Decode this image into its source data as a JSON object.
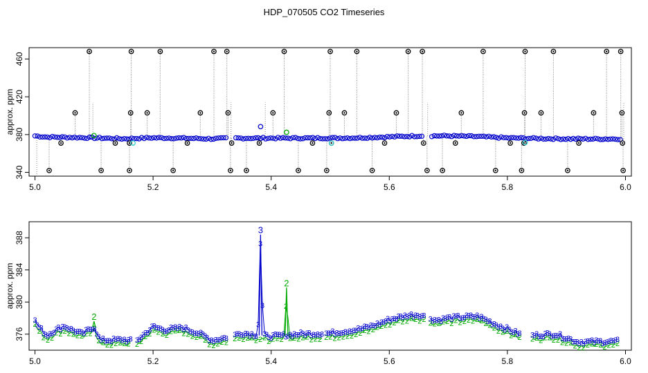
{
  "figure": {
    "title": "HDP_070505  CO2 Timeseries"
  },
  "chart_data": [
    {
      "type": "scatter",
      "ylabel": "approx. ppm",
      "xlim": [
        4.99,
        6.01
      ],
      "ylim": [
        336,
        472
      ],
      "x_ticks": [
        "5.0",
        "5.2",
        "5.4",
        "5.6",
        "5.8",
        "6.0"
      ],
      "y_ticks": [
        "340",
        "380",
        "420",
        "460"
      ],
      "grid": false,
      "colors": {
        "baseline": "#0000cc",
        "outlier": "#000000",
        "alt": "#00aa00",
        "cyan": "#33cccc",
        "drop": "#888888"
      },
      "baseline_anchors": [
        [
          5.0,
          378.6
        ],
        [
          5.02,
          377.4
        ],
        [
          5.05,
          377.2
        ],
        [
          5.1,
          376.5
        ],
        [
          5.15,
          375.6
        ],
        [
          5.2,
          376.6
        ],
        [
          5.25,
          376.2
        ],
        [
          5.3,
          375.5
        ],
        [
          5.33,
          376.2
        ],
        [
          5.4,
          376.2
        ],
        [
          5.5,
          376.3
        ],
        [
          5.55,
          376.6
        ],
        [
          5.6,
          377.6
        ],
        [
          5.65,
          378.6
        ],
        [
          5.7,
          378.6
        ],
        [
          5.75,
          377.9
        ],
        [
          5.8,
          376.5
        ],
        [
          5.85,
          375.9
        ],
        [
          5.9,
          375.5
        ],
        [
          5.95,
          375.4
        ],
        [
          5.99,
          375.4
        ]
      ],
      "baseline_gaps": [
        [
          5.327,
          5.336
        ],
        [
          5.659,
          5.668
        ]
      ],
      "outliers_high": [
        5.092,
        5.163,
        5.212,
        5.303,
        5.325,
        5.422,
        5.5,
        5.545,
        5.632,
        5.656,
        5.759,
        5.83,
        5.878,
        5.968,
        5.992
      ],
      "outliers_mid": [
        5.068,
        5.162,
        5.19,
        5.28,
        5.327,
        5.403,
        5.498,
        5.524,
        5.612,
        5.722,
        5.829,
        5.857,
        5.946,
        5.994
      ],
      "outliers_low": [
        5.024,
        5.112,
        5.16,
        5.234,
        5.331,
        5.358,
        5.446,
        5.494,
        5.571,
        5.664,
        5.69,
        5.78,
        5.824,
        5.902,
        5.996
      ],
      "outliers_base": [
        5.044,
        5.136,
        5.16,
        5.258,
        5.333,
        5.38,
        5.47,
        5.502,
        5.592,
        5.658,
        5.712,
        5.805,
        5.828,
        5.921,
        5.995
      ],
      "special_points": [
        {
          "x": 5.382,
          "y": 388.4,
          "color": "#0000cc"
        },
        {
          "x": 5.426,
          "y": 382.4,
          "color": "#00aa00"
        },
        {
          "x": 5.1,
          "y": 379.0,
          "color": "#00aa00"
        },
        {
          "x": 5.166,
          "y": 371.0,
          "color": "#33cccc"
        },
        {
          "x": 5.502,
          "y": 371.0,
          "color": "#33cccc"
        },
        {
          "x": 5.83,
          "y": 371.5,
          "color": "#33cccc"
        }
      ]
    },
    {
      "type": "line",
      "ylabel": "approx. ppm",
      "xlim": [
        4.99,
        6.01
      ],
      "ylim": [
        374.0,
        390.0
      ],
      "x_ticks": [
        "5.0",
        "5.2",
        "5.4",
        "5.6",
        "5.8",
        "6.0"
      ],
      "y_ticks": [
        "376",
        "380",
        "384",
        "388"
      ],
      "grid": false,
      "series": [
        {
          "marker": "3",
          "color": "#0000cc"
        },
        {
          "marker": "2",
          "color": "#00aa00"
        }
      ],
      "anchors": [
        [
          5.0,
          377.6
        ],
        [
          5.005,
          377.0
        ],
        [
          5.02,
          375.8
        ],
        [
          5.03,
          376.3
        ],
        [
          5.05,
          377.0
        ],
        [
          5.06,
          376.6
        ],
        [
          5.08,
          376.0
        ],
        [
          5.1,
          376.9
        ],
        [
          5.11,
          375.2
        ],
        [
          5.15,
          375.3
        ],
        [
          5.17,
          375.0
        ],
        [
          5.19,
          376.3
        ],
        [
          5.2,
          376.9
        ],
        [
          5.22,
          376.5
        ],
        [
          5.25,
          376.8
        ],
        [
          5.28,
          376.0
        ],
        [
          5.3,
          375.2
        ],
        [
          5.32,
          375.5
        ],
        [
          5.35,
          376.1
        ],
        [
          5.4,
          375.7
        ],
        [
          5.45,
          376.0
        ],
        [
          5.5,
          376.1
        ],
        [
          5.55,
          376.6
        ],
        [
          5.58,
          377.2
        ],
        [
          5.6,
          377.8
        ],
        [
          5.63,
          378.3
        ],
        [
          5.65,
          378.4
        ],
        [
          5.68,
          377.7
        ],
        [
          5.7,
          378.0
        ],
        [
          5.75,
          378.2
        ],
        [
          5.78,
          377.2
        ],
        [
          5.82,
          376.0
        ],
        [
          5.84,
          375.8
        ],
        [
          5.88,
          376.0
        ],
        [
          5.92,
          375.0
        ],
        [
          5.99,
          375.1
        ]
      ],
      "gaps": [
        [
          5.165,
          5.172
        ],
        [
          5.327,
          5.338
        ],
        [
          5.486,
          5.492
        ],
        [
          5.659,
          5.668
        ],
        [
          5.822,
          5.84
        ]
      ],
      "spikes": [
        {
          "x": 5.382,
          "y": 388.4,
          "label": "3",
          "color": "#0000cc"
        },
        {
          "x": 5.426,
          "y": 381.8,
          "label": "2",
          "color": "#00aa00"
        },
        {
          "x": 5.1,
          "y": 377.6,
          "label": "2",
          "color": "#00aa00"
        }
      ]
    }
  ]
}
